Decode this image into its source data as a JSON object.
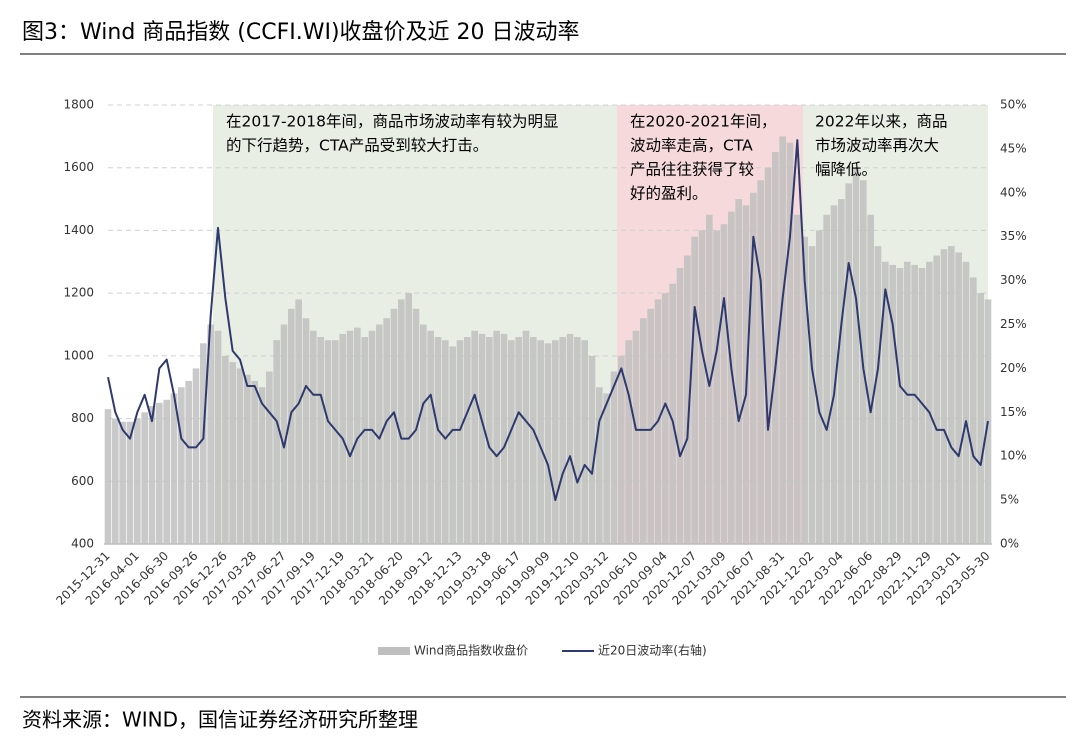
{
  "chart_data": {
    "type": "bar_line",
    "title": "图3：Wind 商品指数 (CCFI.WI)收盘价及近 20 日波动率",
    "source": "资料来源：WIND，国信证券经济研究所整理",
    "categories": [
      "2015-12-31",
      null,
      null,
      null,
      "2016-04-01",
      null,
      null,
      null,
      "2016-06-30",
      null,
      null,
      null,
      "2016-09-26",
      null,
      null,
      null,
      "2016-12-26",
      null,
      null,
      null,
      "2017-03-28",
      null,
      null,
      null,
      "2017-06-27",
      null,
      null,
      null,
      "2017-09-19",
      null,
      null,
      null,
      "2017-12-19",
      null,
      null,
      null,
      "2018-03-21",
      null,
      null,
      null,
      "2018-06-20",
      null,
      null,
      null,
      "2018-09-12",
      null,
      null,
      null,
      "2018-12-13",
      null,
      null,
      null,
      "2019-03-18",
      null,
      null,
      null,
      "2019-06-17",
      null,
      null,
      null,
      "2019-09-09",
      null,
      null,
      null,
      "2019-12-10",
      null,
      null,
      null,
      "2020-03-12",
      null,
      null,
      null,
      "2020-06-10",
      null,
      null,
      null,
      "2020-09-04",
      null,
      null,
      null,
      "2020-12-07",
      null,
      null,
      null,
      "2021-03-09",
      null,
      null,
      null,
      "2021-06-07",
      null,
      null,
      null,
      "2021-08-31",
      null,
      null,
      null,
      "2021-12-02",
      null,
      null,
      null,
      "2022-03-04",
      null,
      null,
      null,
      "2022-06-06",
      null,
      null,
      null,
      "2022-08-29",
      null,
      null,
      null,
      "2022-11-29",
      null,
      null,
      null,
      "2023-03-01",
      null,
      null,
      null,
      "2023-05-30"
    ],
    "series": [
      {
        "name": "Wind商品指数收盘价",
        "type": "bar",
        "color": "#bfbfbf",
        "values": [
          830,
          800,
          790,
          790,
          800,
          820,
          840,
          850,
          860,
          880,
          900,
          920,
          960,
          1040,
          1100,
          1080,
          1000,
          980,
          960,
          940,
          920,
          900,
          950,
          1050,
          1100,
          1150,
          1180,
          1120,
          1080,
          1060,
          1050,
          1050,
          1070,
          1080,
          1090,
          1060,
          1080,
          1100,
          1120,
          1150,
          1180,
          1200,
          1150,
          1100,
          1080,
          1060,
          1050,
          1030,
          1050,
          1060,
          1080,
          1070,
          1060,
          1080,
          1070,
          1050,
          1060,
          1080,
          1060,
          1050,
          1040,
          1050,
          1060,
          1070,
          1060,
          1050,
          1000,
          900,
          880,
          950,
          1000,
          1050,
          1080,
          1120,
          1150,
          1180,
          1200,
          1230,
          1280,
          1320,
          1380,
          1400,
          1450,
          1400,
          1420,
          1460,
          1500,
          1480,
          1520,
          1560,
          1600,
          1650,
          1700,
          1680,
          1450,
          1380,
          1350,
          1400,
          1450,
          1480,
          1500,
          1550,
          1600,
          1560,
          1450,
          1350,
          1300,
          1290,
          1280,
          1300,
          1290,
          1280,
          1300,
          1320,
          1340,
          1350,
          1330,
          1300,
          1250,
          1200,
          1180
        ]
      },
      {
        "name": "近20日波动率(右轴)",
        "type": "line",
        "axis": "y2",
        "color": "#2e3a6e",
        "values": [
          19,
          15,
          13,
          12,
          15,
          17,
          14,
          20,
          21,
          17,
          12,
          11,
          11,
          12,
          26,
          36,
          28,
          22,
          21,
          18,
          18,
          16,
          15,
          14,
          11,
          15,
          16,
          18,
          17,
          17,
          14,
          13,
          12,
          10,
          12,
          13,
          13,
          12,
          14,
          15,
          12,
          12,
          13,
          16,
          17,
          13,
          12,
          13,
          13,
          15,
          17,
          14,
          11,
          10,
          11,
          13,
          15,
          14,
          13,
          11,
          9,
          5,
          8,
          10,
          7,
          9,
          8,
          14,
          16,
          18,
          20,
          17,
          13,
          13,
          13,
          14,
          16,
          14,
          10,
          12,
          27,
          22,
          18,
          22,
          28,
          20,
          14,
          17,
          35,
          30,
          13,
          20,
          28,
          35,
          46,
          30,
          20,
          15,
          13,
          17,
          25,
          32,
          28,
          20,
          15,
          20,
          29,
          25,
          18,
          17,
          17,
          16,
          15,
          13,
          13,
          11,
          10,
          14,
          10,
          9,
          14
        ]
      }
    ],
    "ylim": [
      400,
      1800
    ],
    "yticks": [
      400,
      600,
      800,
      1000,
      1200,
      1400,
      1600,
      1800
    ],
    "y2lim": [
      0,
      50
    ],
    "y2ticks": [
      {
        "value": 0,
        "label": "0%"
      },
      {
        "value": 5,
        "label": "5%"
      },
      {
        "value": 10,
        "label": "10%"
      },
      {
        "value": 15,
        "label": "15%"
      },
      {
        "value": 20,
        "label": "20%"
      },
      {
        "value": 25,
        "label": "25%"
      },
      {
        "value": 30,
        "label": "30%"
      },
      {
        "value": 35,
        "label": "35%"
      },
      {
        "value": 40,
        "label": "40%"
      },
      {
        "value": 45,
        "label": "45%"
      },
      {
        "value": 50,
        "label": "50%"
      }
    ],
    "grid": true,
    "legend": "bottom",
    "annotations": [
      {
        "lines": [
          "在2017-2018年间，商品市场波动率有较为明显",
          "的下行趋势，CTA产品受到较大打击。"
        ]
      },
      {
        "lines": [
          "在2020-2021年间，",
          "波动率走高，CTA",
          "产品往往获得了较",
          "好的盈利。"
        ]
      },
      {
        "lines": [
          "2022年以来，商品",
          "市场波动率再次大",
          "幅降低。"
        ]
      }
    ]
  }
}
